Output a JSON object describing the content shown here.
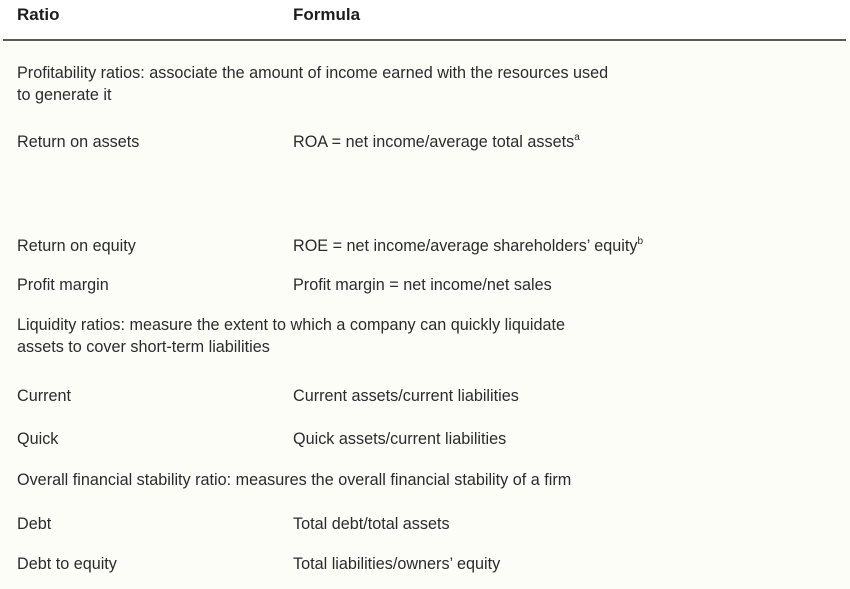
{
  "header": {
    "col_ratio": "Ratio",
    "col_formula": "Formula"
  },
  "sections": {
    "profitability": {
      "line1": "Profitability ratios: associate the amount of income earned with the resources used",
      "line2": "to generate it"
    },
    "liquidity": {
      "line1": "Liquidity ratios: measure the extent to which a company can quickly liquidate",
      "line2": "assets to cover short-term liabilities"
    },
    "stability": {
      "line1": "Overall financial stability ratio: measures the overall financial stability of a firm"
    }
  },
  "rows": {
    "roa": {
      "ratio": "Return on assets",
      "formula": "ROA = net income/average total assets",
      "footnote": "a"
    },
    "roe": {
      "ratio": "Return on equity",
      "formula": "ROE = net income/average shareholders’ equity",
      "footnote": "b"
    },
    "profit_margin": {
      "ratio": "Profit margin",
      "formula": "Profit margin = net income/net sales"
    },
    "current": {
      "ratio": "Current",
      "formula": "Current assets/current liabilities"
    },
    "quick": {
      "ratio": "Quick",
      "formula": "Quick assets/current liabilities"
    },
    "debt": {
      "ratio": "Debt",
      "formula": "Total debt/total assets"
    },
    "debt_to_equity": {
      "ratio": "Debt to equity",
      "formula": "Total liabilities/owners’ equity"
    }
  }
}
